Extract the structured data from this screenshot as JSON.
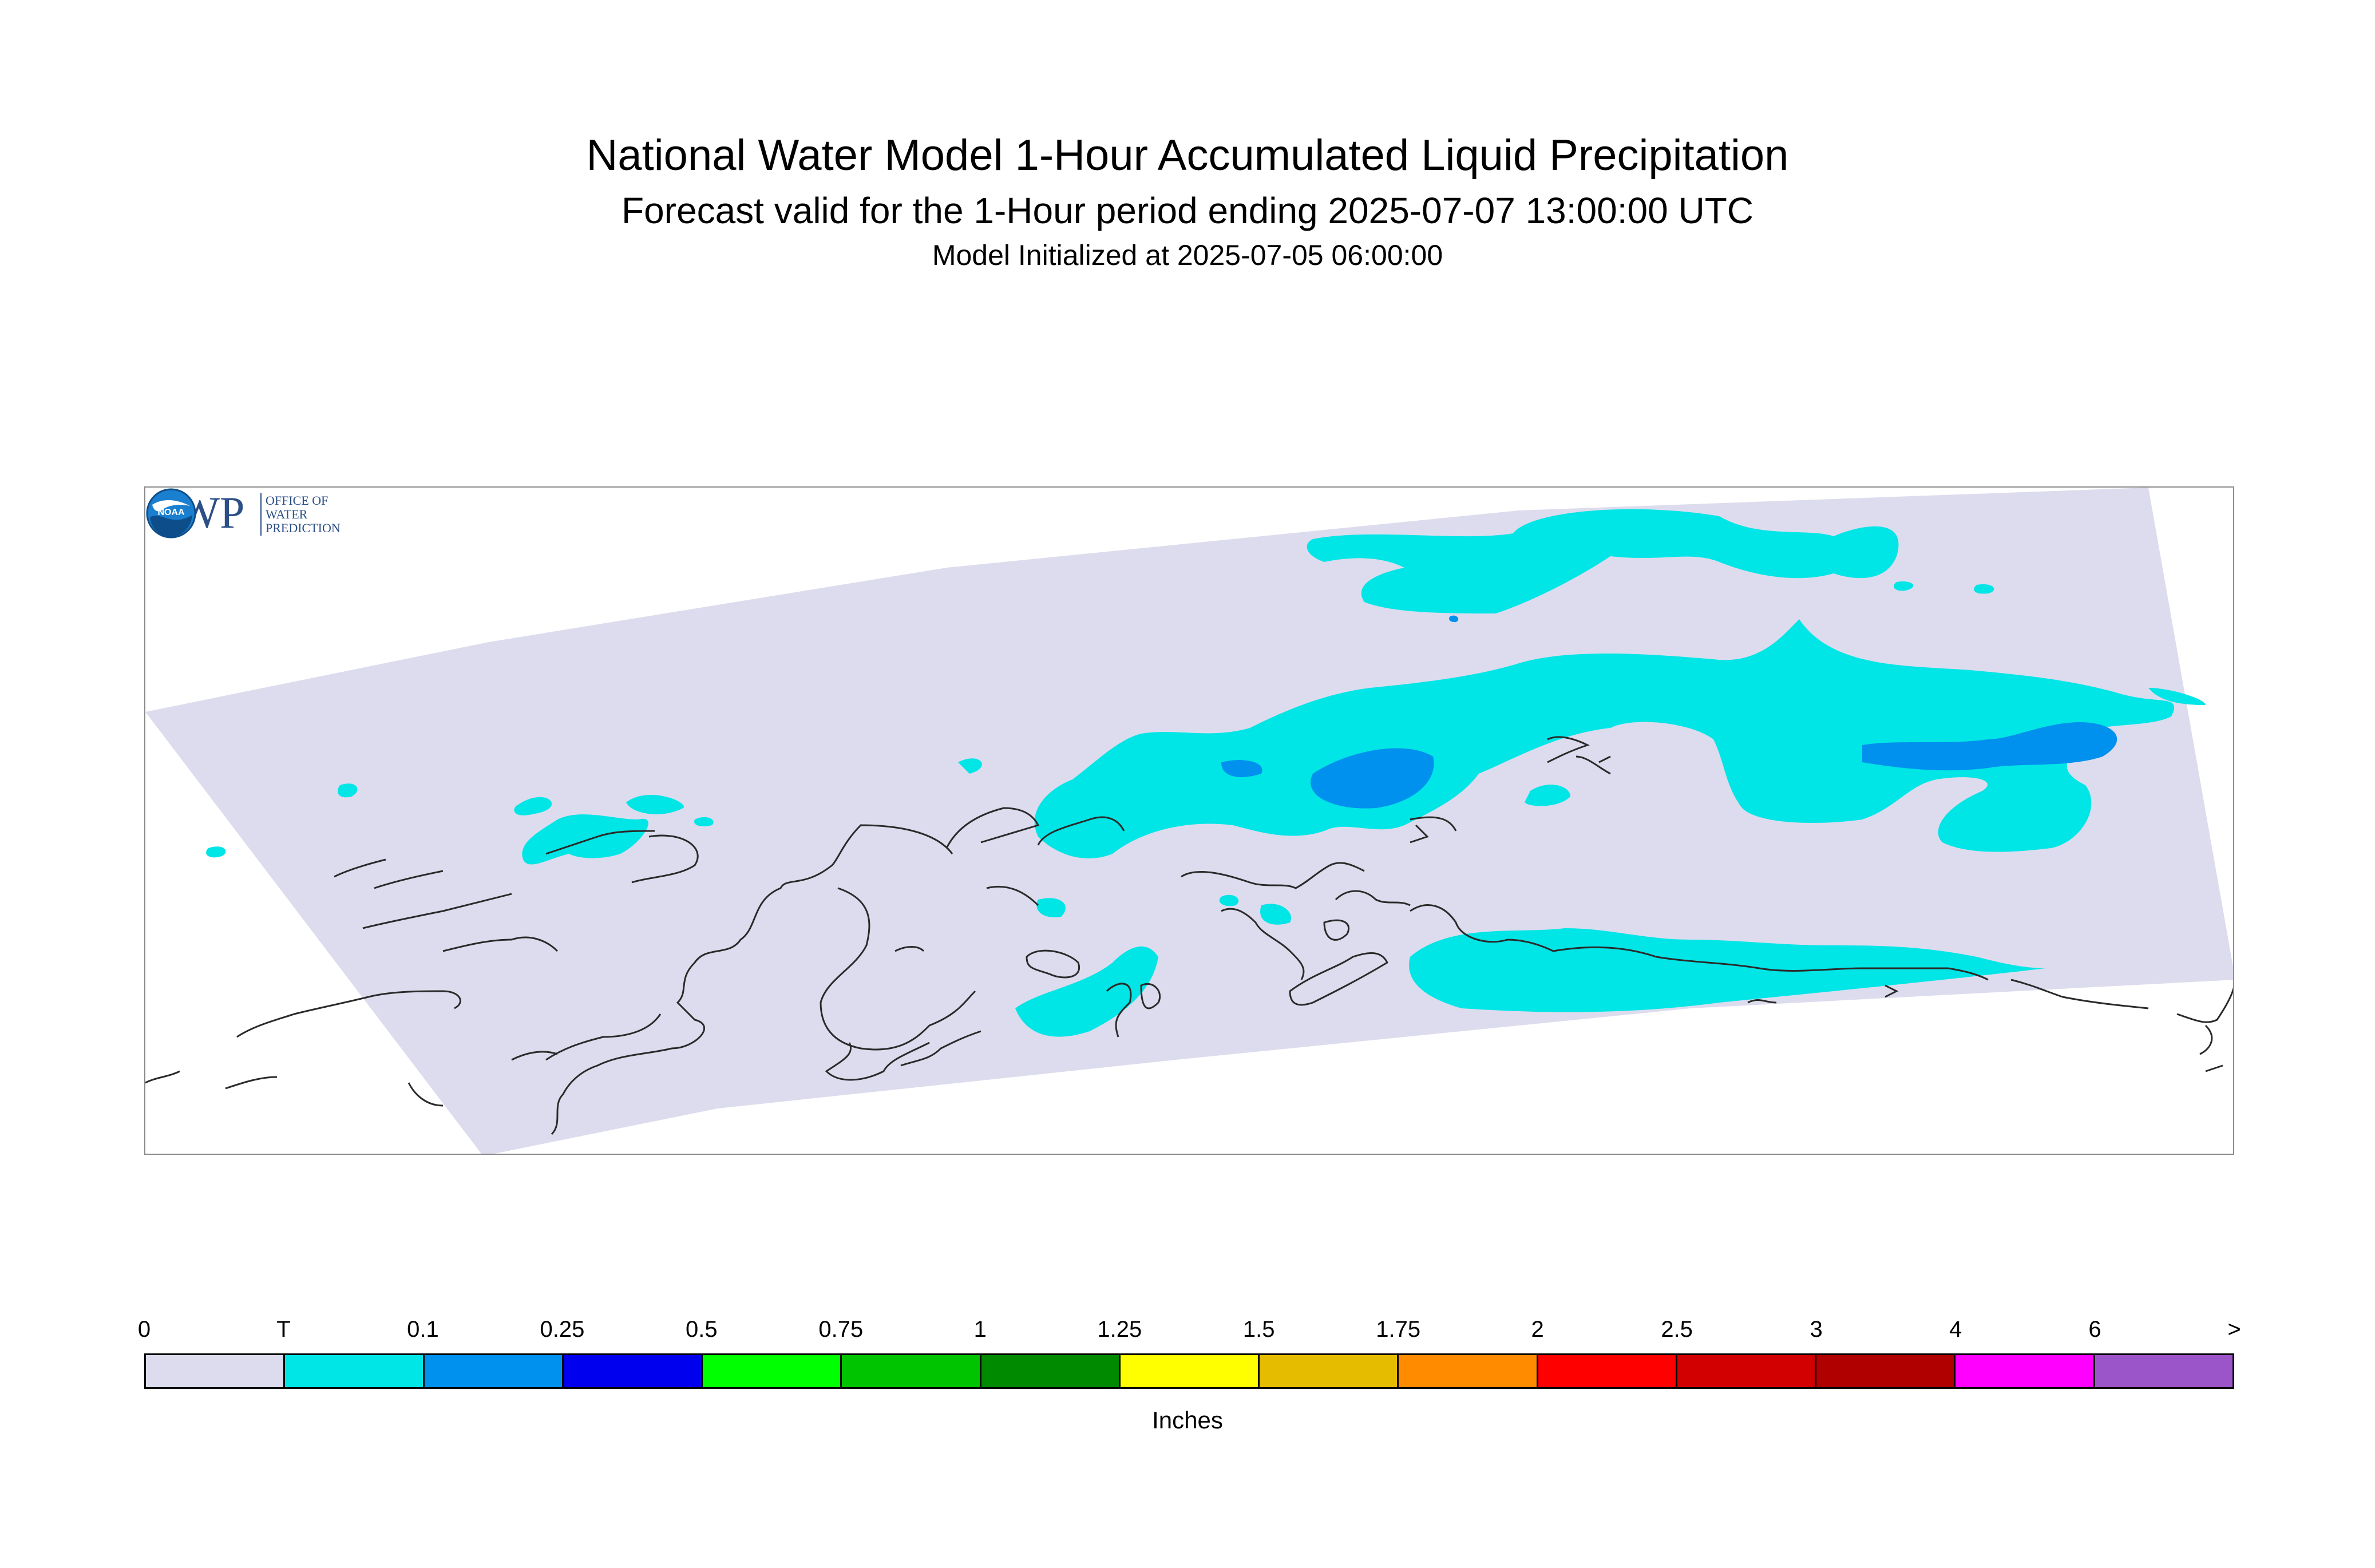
{
  "header": {
    "title": "National Water Model 1-Hour Accumulated Liquid Precipitation",
    "subtitle": "Forecast valid for the 1-Hour period ending 2025-07-07 13:00:00 UTC",
    "init": "Model Initialized at 2025-07-05 06:00:00"
  },
  "map": {
    "region_color": "#dcdcee",
    "coast_color": "#2a2a2a",
    "owp_logo": {
      "letters": "OWP",
      "line1": "OFFICE OF",
      "line2": "WATER",
      "line3": "PREDICTION",
      "color": "#2b4f86"
    },
    "noaa_logo": {
      "text": "NOAA",
      "color": "#1a7fcf"
    }
  },
  "legend": {
    "tick_labels": [
      "0",
      "T",
      "0.1",
      "0.25",
      "0.5",
      "0.75",
      "1",
      "1.25",
      "1.5",
      "1.75",
      "2",
      "2.5",
      "3",
      "4",
      "6",
      ">"
    ],
    "colors": [
      "#dcdcee",
      "#00e5e5",
      "#0090ee",
      "#0000ee",
      "#00ff00",
      "#00c400",
      "#008a00",
      "#ffff00",
      "#e6bc00",
      "#ff8c00",
      "#ff0000",
      "#d20000",
      "#b00000",
      "#ff00ff",
      "#9c55c8"
    ],
    "units": "Inches"
  }
}
